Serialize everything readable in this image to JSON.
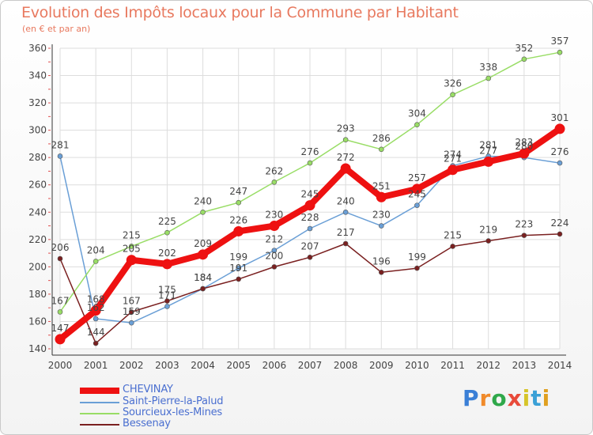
{
  "header": {
    "title": "Evolution des Impôts locaux pour la Commune par Habitant",
    "subtitle": "(en € et par an)"
  },
  "logo": {
    "text": "Proxiti",
    "colors": [
      "#3a7fd6",
      "#f08a2a",
      "#2fa84a",
      "#e84a3a",
      "#d6c42a",
      "#3aa0d6",
      "#e0a020"
    ]
  },
  "chart_data": {
    "type": "line",
    "x": [
      2000,
      2001,
      2002,
      2003,
      2004,
      2005,
      2006,
      2007,
      2008,
      2009,
      2010,
      2011,
      2012,
      2013,
      2014
    ],
    "ylim": [
      140,
      360
    ],
    "yticks": [
      140,
      160,
      180,
      200,
      220,
      240,
      260,
      280,
      300,
      320,
      340,
      360
    ],
    "grid": true,
    "legend_position": "bottom-left",
    "series": [
      {
        "name": "CHEVINAY",
        "color": "#ee1111",
        "emphasis": true,
        "values": [
          147,
          168,
          205,
          202,
          209,
          226,
          230,
          245,
          272,
          251,
          257,
          271,
          277,
          283,
          301
        ],
        "labels": [
          "147",
          "168",
          "205",
          "202",
          "209",
          "226",
          "230",
          "245",
          "272",
          "251",
          "257",
          "271",
          "277",
          "283",
          "301"
        ]
      },
      {
        "name": "Saint-Pierre-la-Palud",
        "color": "#6a9fd6",
        "emphasis": false,
        "values": [
          281,
          162,
          159,
          171,
          184,
          199,
          212,
          228,
          240,
          230,
          245,
          274,
          281,
          280,
          276
        ],
        "labels": [
          "281",
          "162",
          "159",
          "171",
          "184",
          "199",
          "212",
          "228",
          "240",
          "230",
          "245",
          "274",
          "281",
          "280",
          "276"
        ]
      },
      {
        "name": "Sourcieux-les-Mines",
        "color": "#99dd66",
        "emphasis": false,
        "values": [
          167,
          204,
          215,
          225,
          240,
          247,
          262,
          276,
          293,
          286,
          304,
          326,
          338,
          352,
          357
        ],
        "labels": [
          "167",
          "204",
          "215",
          "225",
          "240",
          "247",
          "262",
          "276",
          "293",
          "286",
          "304",
          "326",
          "338",
          "352",
          "357"
        ]
      },
      {
        "name": "Bessenay",
        "color": "#7a2020",
        "emphasis": false,
        "values": [
          206,
          144,
          167,
          175,
          184,
          191,
          200,
          207,
          217,
          196,
          199,
          215,
          219,
          223,
          224
        ],
        "labels": [
          "206",
          "144",
          "167",
          "175",
          "184",
          "191",
          "200",
          "207",
          "217",
          "196",
          "199",
          "215",
          "219",
          "223",
          "224"
        ]
      }
    ]
  }
}
